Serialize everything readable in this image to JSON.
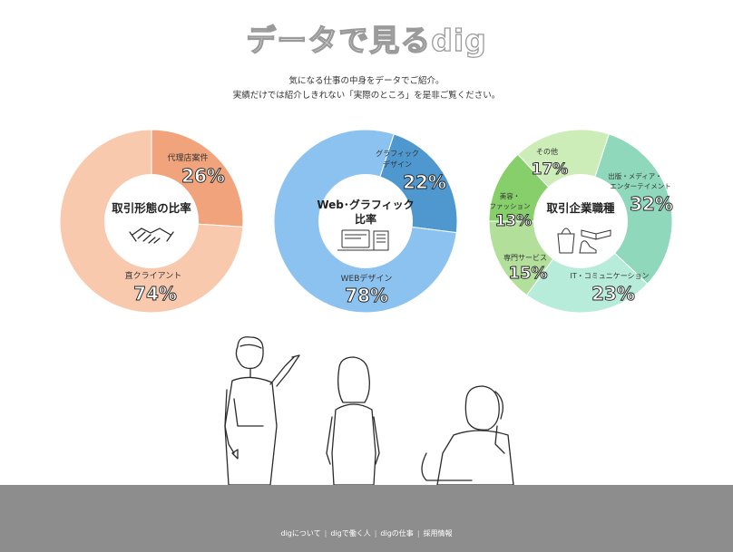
{
  "header": {
    "title": "データで見るdig",
    "lead1": "気になる仕事の中身をデータでご紹介。",
    "lead2": "実績だけでは紹介しきれない「実際のところ」を是非ご覧ください。"
  },
  "chart_data": [
    {
      "type": "pie",
      "center_label": "取引形態の比率",
      "categories": [
        "代理店案件",
        "直クライアント"
      ],
      "values": [
        26,
        74
      ],
      "value_labels": [
        "26%",
        "74%"
      ],
      "colors": [
        "#f1a47b",
        "#f9c9ae"
      ]
    },
    {
      "type": "pie",
      "center_label": "Web･グラフィック比率",
      "categories": [
        "グラフィックデザイン",
        "WEBデザイン"
      ],
      "values": [
        22,
        78
      ],
      "value_labels": [
        "22%",
        "78%"
      ],
      "colors": [
        "#4e98cf",
        "#8bc2ef"
      ]
    },
    {
      "type": "pie",
      "center_label": "取引企業職種",
      "categories": [
        "出版・メディア・エンターテイメント",
        "IT・コミュニケーション",
        "専門サービス",
        "美容・ファッション",
        "その他"
      ],
      "values": [
        32,
        23,
        15,
        13,
        17
      ],
      "value_labels": [
        "32%",
        "23%",
        "15%",
        "13%",
        "17%"
      ],
      "colors": [
        "#8fd8bb",
        "#b6ecd9",
        "#b2e09a",
        "#86cf6a",
        "#cdedb8"
      ]
    }
  ],
  "footer": {
    "links": [
      "digについて",
      "digで働く人",
      "digの仕事",
      "採用情報"
    ],
    "separator": "|"
  }
}
